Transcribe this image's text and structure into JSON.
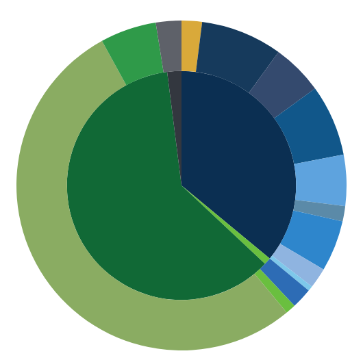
{
  "chart_data": {
    "type": "donut",
    "categories": [
      null,
      null,
      null,
      null,
      null,
      null,
      null,
      null,
      null,
      null,
      null,
      null,
      null,
      null
    ],
    "series": [
      {
        "values": [
          2,
          8,
          5,
          7,
          5,
          1.5,
          5,
          2,
          0.5,
          2,
          1,
          53,
          5.5,
          2.5
        ],
        "colors": [
          "#d9a93a",
          "#163a5c",
          "#344a6e",
          "#11578a",
          "#5ea3de",
          "#5b8aa8",
          "#2e86cc",
          "#8fb4e0",
          "#7ec8ea",
          "#2d6cb5",
          "#6abf3f",
          "#8aac62",
          "#2f9a49",
          "#5e6169"
        ]
      },
      {
        "values": [
          36,
          1,
          61,
          2,
          null,
          null,
          null,
          null,
          null,
          null,
          null,
          null,
          null,
          null
        ],
        "colors": [
          "#0b2f52",
          "#6abf3f",
          "#116936",
          "#33373f",
          "#ffffff",
          "#ffffff",
          "#ffffff",
          "#ffffff",
          "#ffffff",
          "#ffffff",
          "#ffffff",
          "#ffffff",
          "#ffffff",
          "#ffffff"
        ]
      }
    ]
  }
}
